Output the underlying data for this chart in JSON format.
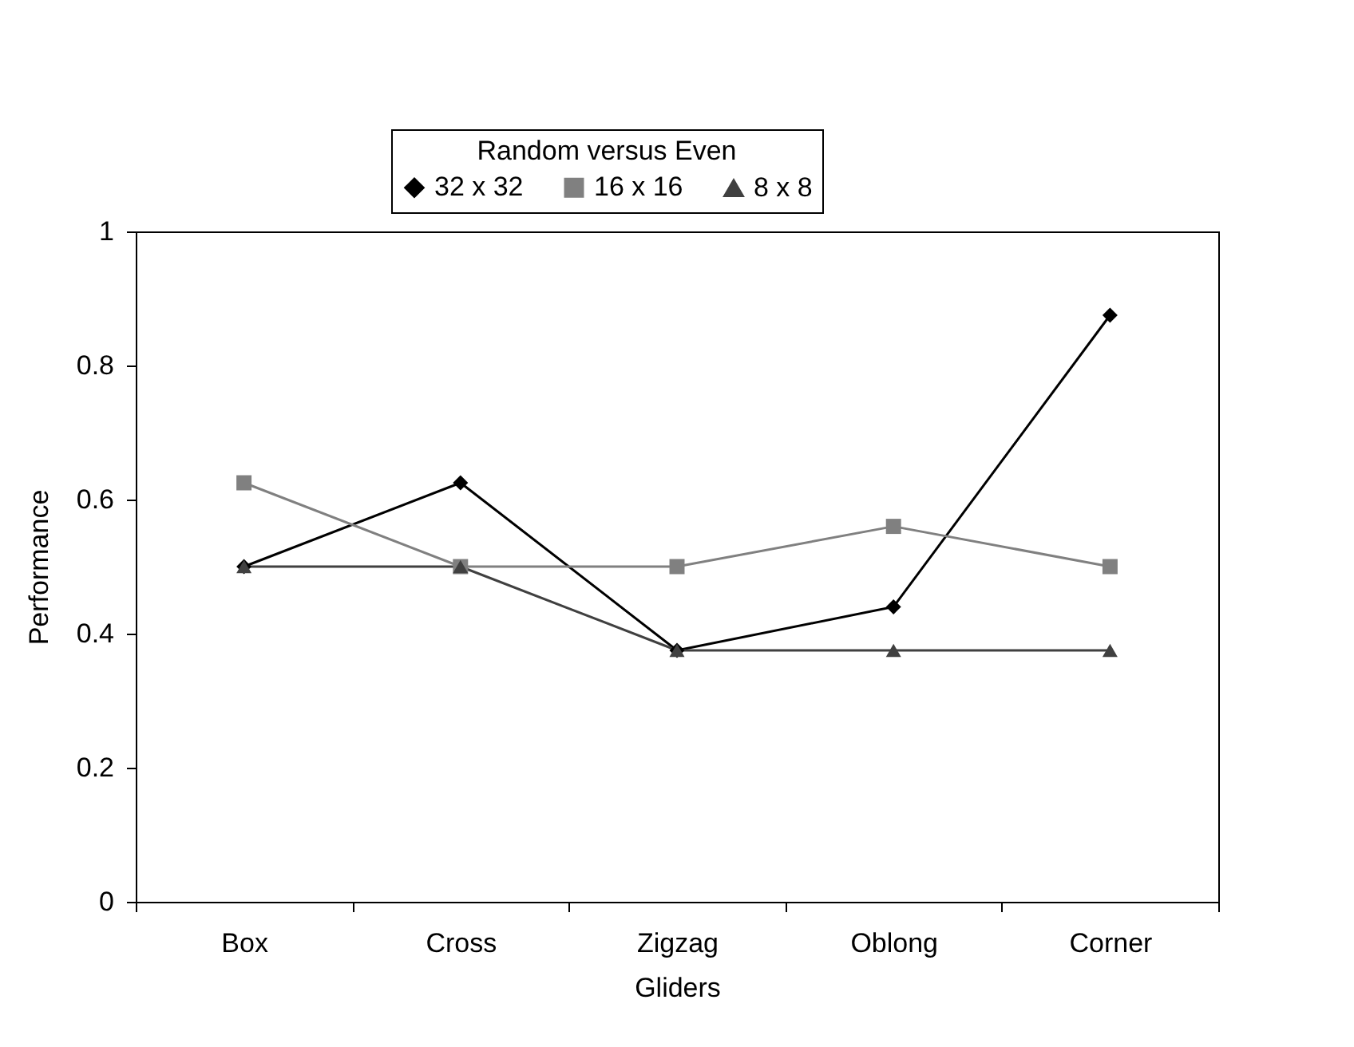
{
  "chart_data": {
    "type": "line",
    "legend_title": "Random versus Even",
    "xlabel": "Gliders",
    "ylabel": "Performance",
    "categories": [
      "Box",
      "Cross",
      "Zigzag",
      "Oblong",
      "Corner"
    ],
    "series": [
      {
        "name": "32 x 32",
        "color": "#000000",
        "marker": "diamond",
        "values": [
          0.5,
          0.625,
          0.375,
          0.44,
          0.875
        ]
      },
      {
        "name": "16 x 16",
        "color": "#808080",
        "marker": "square",
        "values": [
          0.625,
          0.5,
          0.5,
          0.56,
          0.5
        ]
      },
      {
        "name": "8 x 8",
        "color": "#404040",
        "marker": "triangle",
        "values": [
          0.5,
          0.5,
          0.375,
          0.375,
          0.375
        ]
      }
    ],
    "ylim": [
      0,
      1
    ],
    "yticks": [
      0,
      0.2,
      0.4,
      0.6,
      0.8,
      1
    ],
    "grid": false,
    "legend": "top",
    "line_style": "solid"
  }
}
